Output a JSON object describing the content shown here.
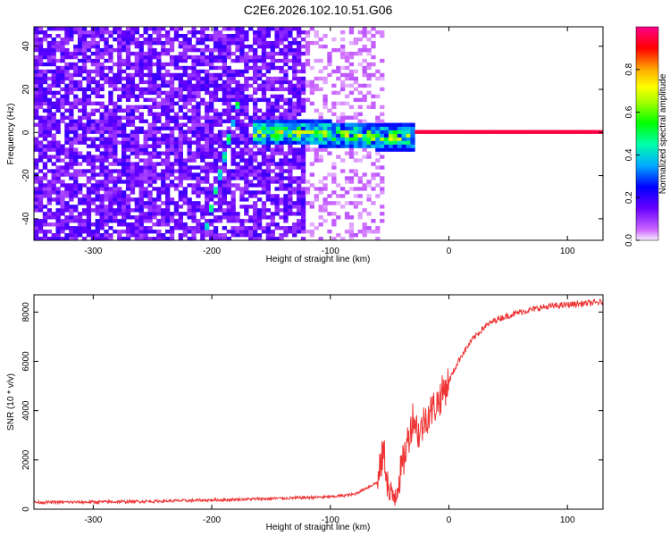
{
  "title": "C2E6.2026.102.10.51.G06",
  "chart_data": [
    {
      "type": "heatmap",
      "xlabel": "Height of straight line (km)",
      "ylabel": "Frequency (Hz)",
      "xlim": [
        -350,
        130
      ],
      "ylim": [
        -50,
        49
      ],
      "xticks": [
        -300,
        -200,
        -100,
        0,
        100
      ],
      "yticks": [
        -40,
        -20,
        0,
        20,
        40
      ],
      "colorbar": {
        "label": "Normalized spectral amplitude",
        "range": [
          0.0,
          1.0
        ],
        "ticks": [
          0.0,
          0.2,
          0.4,
          0.6,
          0.8
        ],
        "tick_labels": [
          "0.0",
          "0.2",
          "0.4",
          "0.6",
          "0.8"
        ]
      },
      "features": {
        "stable_carrier": {
          "x_from": -30,
          "x_to": 130,
          "frequency": 0,
          "amplitude": 1.0
        },
        "diffuse_carrier": {
          "x_from": -165,
          "x_to": -30,
          "frequency_approx": 0,
          "amplitude_range": [
            0.3,
            0.9
          ]
        },
        "diagonal_trace": {
          "x_from": -205,
          "x_to": -175,
          "freq_from": -45,
          "freq_to": 20
        }
      }
    },
    {
      "type": "line",
      "xlabel": "Height of straight line (km)",
      "ylabel": "SNR (10 * v/v)",
      "xlim": [
        -350,
        130
      ],
      "ylim": [
        0,
        8700
      ],
      "xticks": [
        -300,
        -200,
        -100,
        0,
        100
      ],
      "yticks": [
        0,
        2000,
        4000,
        6000,
        8000
      ],
      "series": [
        {
          "name": "SNR",
          "color": "#ee3333",
          "x": [
            -350,
            -300,
            -250,
            -200,
            -150,
            -100,
            -80,
            -60,
            -55,
            -50,
            -45,
            -40,
            -35,
            -30,
            -25,
            -20,
            -10,
            0,
            10,
            20,
            30,
            40,
            60,
            80,
            100,
            130
          ],
          "y": [
            280,
            290,
            320,
            370,
            430,
            500,
            600,
            1100,
            2400,
            400,
            700,
            1600,
            2700,
            3800,
            3000,
            3700,
            4300,
            5200,
            6200,
            6900,
            7400,
            7700,
            8000,
            8200,
            8300,
            8400
          ]
        }
      ]
    }
  ]
}
